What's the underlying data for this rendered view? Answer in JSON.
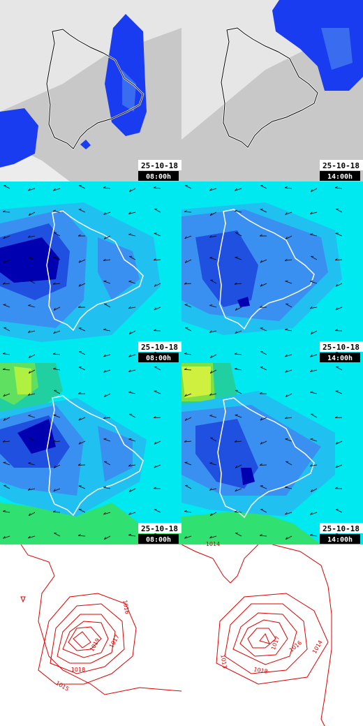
{
  "panels": [
    {
      "date": "25-10-18",
      "time": "08:00h"
    },
    {
      "date": "25-10-18",
      "time": "14:00h"
    },
    {
      "date": "25-10-18",
      "time": "08:00h"
    },
    {
      "date": "25-10-18",
      "time": "14:00h"
    },
    {
      "date": "25-10-18",
      "time": "08:00h"
    },
    {
      "date": "25-10-18",
      "time": "14:00h"
    }
  ],
  "isobars": {
    "left": [
      "1016",
      "1019",
      "1017",
      "1018",
      "1015"
    ],
    "right": [
      "1014",
      "1017",
      "1016",
      "1014",
      "1013",
      "1018"
    ]
  }
}
